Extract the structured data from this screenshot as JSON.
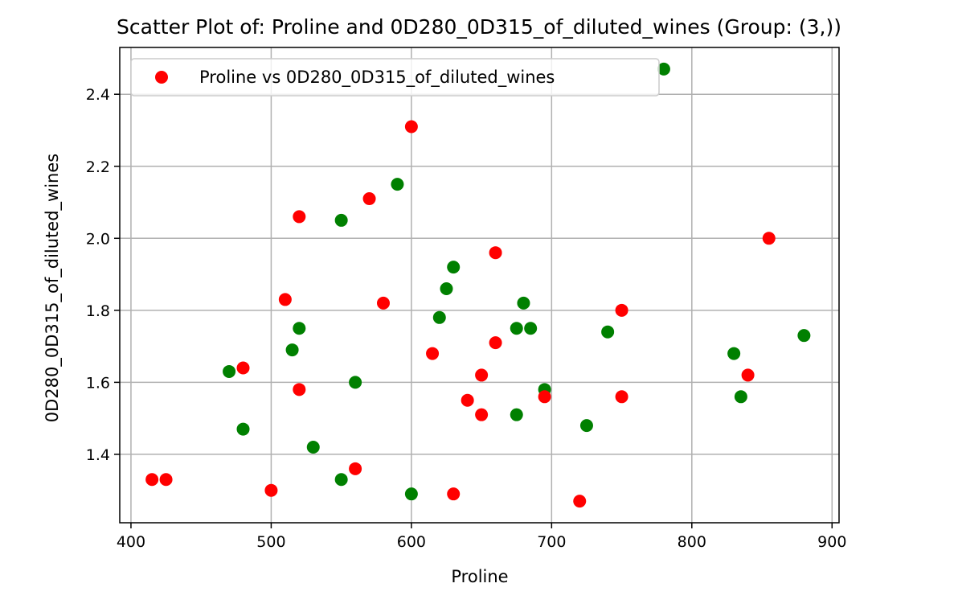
{
  "chart_data": {
    "type": "scatter",
    "title": "Scatter Plot of: Proline and 0D280_0D315_of_diluted_wines (Group: (3,))",
    "xlabel": "Proline",
    "ylabel": "0D280_0D315_of_diluted_wines",
    "xlim": [
      392,
      905
    ],
    "ylim": [
      1.21,
      2.53
    ],
    "xticks": [
      400,
      500,
      600,
      700,
      800,
      900
    ],
    "xtick_labels": [
      "400",
      "500",
      "600",
      "700",
      "800",
      "900"
    ],
    "yticks": [
      1.4,
      1.6,
      1.8,
      2.0,
      2.2,
      2.4
    ],
    "ytick_labels": [
      "1.4",
      "1.6",
      "1.8",
      "2.0",
      "2.2",
      "2.4"
    ],
    "grid": true,
    "legend_position": "upper-left",
    "legend": [
      {
        "label": "Proline vs 0D280_0D315_of_diluted_wines",
        "color": "#ff0000"
      }
    ],
    "series": [
      {
        "color": "#008000",
        "points": [
          {
            "x": 780,
            "y": 2.47
          },
          {
            "x": 590,
            "y": 2.15
          },
          {
            "x": 550,
            "y": 2.05
          },
          {
            "x": 630,
            "y": 1.92
          },
          {
            "x": 625,
            "y": 1.86
          },
          {
            "x": 680,
            "y": 1.82
          },
          {
            "x": 620,
            "y": 1.78
          },
          {
            "x": 520,
            "y": 1.75
          },
          {
            "x": 675,
            "y": 1.75
          },
          {
            "x": 685,
            "y": 1.75
          },
          {
            "x": 740,
            "y": 1.74
          },
          {
            "x": 880,
            "y": 1.73
          },
          {
            "x": 515,
            "y": 1.69
          },
          {
            "x": 830,
            "y": 1.68
          },
          {
            "x": 470,
            "y": 1.63
          },
          {
            "x": 560,
            "y": 1.6
          },
          {
            "x": 695,
            "y": 1.58
          },
          {
            "x": 835,
            "y": 1.56
          },
          {
            "x": 675,
            "y": 1.51
          },
          {
            "x": 725,
            "y": 1.48
          },
          {
            "x": 480,
            "y": 1.47
          },
          {
            "x": 530,
            "y": 1.42
          },
          {
            "x": 550,
            "y": 1.33
          },
          {
            "x": 600,
            "y": 1.29
          }
        ]
      },
      {
        "color": "#ff0000",
        "points": [
          {
            "x": 600,
            "y": 2.31
          },
          {
            "x": 570,
            "y": 2.11
          },
          {
            "x": 520,
            "y": 2.06
          },
          {
            "x": 855,
            "y": 2.0
          },
          {
            "x": 660,
            "y": 1.96
          },
          {
            "x": 510,
            "y": 1.83
          },
          {
            "x": 580,
            "y": 1.82
          },
          {
            "x": 750,
            "y": 1.8
          },
          {
            "x": 660,
            "y": 1.71
          },
          {
            "x": 615,
            "y": 1.68
          },
          {
            "x": 480,
            "y": 1.64
          },
          {
            "x": 650,
            "y": 1.62
          },
          {
            "x": 840,
            "y": 1.62
          },
          {
            "x": 520,
            "y": 1.58
          },
          {
            "x": 695,
            "y": 1.56
          },
          {
            "x": 750,
            "y": 1.56
          },
          {
            "x": 640,
            "y": 1.55
          },
          {
            "x": 650,
            "y": 1.51
          },
          {
            "x": 560,
            "y": 1.36
          },
          {
            "x": 415,
            "y": 1.33
          },
          {
            "x": 425,
            "y": 1.33
          },
          {
            "x": 500,
            "y": 1.3
          },
          {
            "x": 630,
            "y": 1.29
          },
          {
            "x": 720,
            "y": 1.27
          }
        ]
      }
    ]
  }
}
